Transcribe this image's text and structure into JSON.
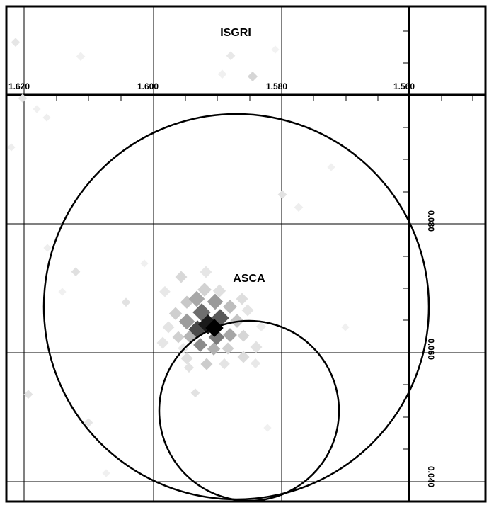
{
  "image": {
    "instrument_label": "ISGRI",
    "source_label": "ASCA"
  },
  "axes": {
    "top_ticks": [
      "1.620",
      "1.600",
      "1.580",
      "1.560"
    ],
    "right_ticks": [
      "0.080",
      "0.060",
      "0.040"
    ]
  },
  "colors": {
    "background": "#ffffff",
    "line": "#000000"
  }
}
